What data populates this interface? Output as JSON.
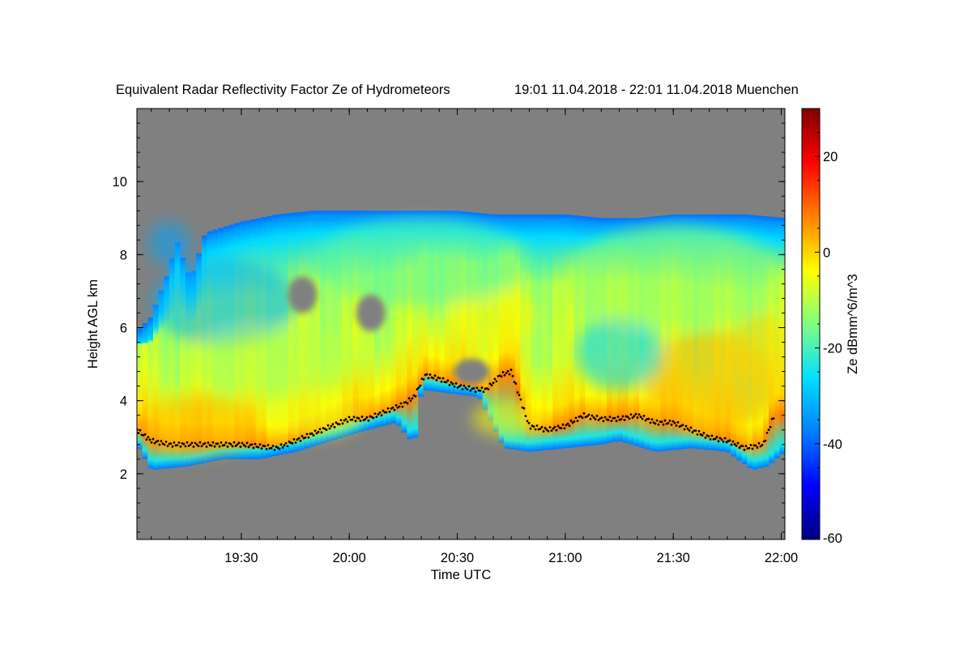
{
  "chart_data": {
    "type": "heatmap",
    "title": "Equivalent Radar Reflectivity Factor Ze of Hydrometeors",
    "subtitle": "19:01 11.04.2018 - 22:01 11.04.2018 Muenchen",
    "xlabel": "Time UTC",
    "ylabel": "Height AGL km",
    "colorbar_label": "Ze dBmm^6/m^3",
    "x_range_minutes_utc": [
      1141,
      1321
    ],
    "x_ticks": [
      {
        "label": "19:30",
        "value": 1170
      },
      {
        "label": "20:00",
        "value": 1200
      },
      {
        "label": "20:30",
        "value": 1230
      },
      {
        "label": "21:00",
        "value": 1260
      },
      {
        "label": "21:30",
        "value": 1290
      },
      {
        "label": "22:00",
        "value": 1320
      }
    ],
    "y_range": [
      0.2,
      12
    ],
    "y_ticks": [
      2,
      4,
      6,
      8,
      10
    ],
    "colorbar_range": [
      -60,
      30
    ],
    "colorbar_ticks": [
      20,
      0,
      -20,
      -40,
      -60
    ],
    "background_no_signal": "#808080",
    "colormap_stops": [
      "#00007f",
      "#0000ff",
      "#0080ff",
      "#00e0ff",
      "#7fff7f",
      "#ffff00",
      "#ff8000",
      "#ff0000",
      "#7f0000"
    ],
    "echo_top_km": [
      [
        1141,
        5.9
      ],
      [
        1145,
        6.3
      ],
      [
        1150,
        7.6
      ],
      [
        1152,
        8.4
      ],
      [
        1156,
        7.3
      ],
      [
        1160,
        8.6
      ],
      [
        1170,
        8.9
      ],
      [
        1180,
        9.1
      ],
      [
        1190,
        9.2
      ],
      [
        1200,
        9.2
      ],
      [
        1210,
        9.2
      ],
      [
        1220,
        9.2
      ],
      [
        1230,
        9.2
      ],
      [
        1240,
        9.1
      ],
      [
        1250,
        9.1
      ],
      [
        1260,
        9.1
      ],
      [
        1270,
        9.0
      ],
      [
        1280,
        9.0
      ],
      [
        1290,
        9.1
      ],
      [
        1300,
        9.1
      ],
      [
        1310,
        9.1
      ],
      [
        1321,
        9.0
      ]
    ],
    "echo_base_km": [
      [
        1141,
        2.8
      ],
      [
        1145,
        2.1
      ],
      [
        1155,
        2.2
      ],
      [
        1165,
        2.4
      ],
      [
        1175,
        2.4
      ],
      [
        1185,
        2.6
      ],
      [
        1195,
        2.9
      ],
      [
        1205,
        3.2
      ],
      [
        1213,
        3.4
      ],
      [
        1218,
        2.8
      ],
      [
        1220,
        4.3
      ],
      [
        1236,
        4.1
      ],
      [
        1240,
        3.3
      ],
      [
        1243,
        2.7
      ],
      [
        1250,
        2.6
      ],
      [
        1260,
        2.7
      ],
      [
        1270,
        2.8
      ],
      [
        1275,
        2.9
      ],
      [
        1285,
        2.6
      ],
      [
        1295,
        2.7
      ],
      [
        1305,
        2.6
      ],
      [
        1312,
        2.1
      ],
      [
        1316,
        2.2
      ],
      [
        1321,
        2.6
      ]
    ],
    "melting_layer_km": [
      [
        1141,
        3.2
      ],
      [
        1145,
        2.9
      ],
      [
        1150,
        2.8
      ],
      [
        1160,
        2.8
      ],
      [
        1170,
        2.8
      ],
      [
        1180,
        2.7
      ],
      [
        1190,
        3.1
      ],
      [
        1195,
        3.3
      ],
      [
        1200,
        3.5
      ],
      [
        1205,
        3.5
      ],
      [
        1210,
        3.7
      ],
      [
        1215,
        3.9
      ],
      [
        1218,
        4.1
      ],
      [
        1221,
        4.7
      ],
      [
        1225,
        4.6
      ],
      [
        1230,
        4.4
      ],
      [
        1235,
        4.3
      ],
      [
        1238,
        4.3
      ],
      [
        1242,
        4.7
      ],
      [
        1245,
        4.8
      ],
      [
        1250,
        3.3
      ],
      [
        1255,
        3.2
      ],
      [
        1260,
        3.3
      ],
      [
        1265,
        3.6
      ],
      [
        1270,
        3.5
      ],
      [
        1275,
        3.5
      ],
      [
        1280,
        3.6
      ],
      [
        1285,
        3.4
      ],
      [
        1290,
        3.4
      ],
      [
        1295,
        3.2
      ],
      [
        1300,
        3.0
      ],
      [
        1305,
        2.9
      ],
      [
        1310,
        2.7
      ],
      [
        1315,
        2.8
      ],
      [
        1318,
        3.6
      ]
    ],
    "echo_holes": [
      {
        "t": 1187,
        "h": 6.9,
        "dt": 4,
        "dh": 0.5
      },
      {
        "t": 1206,
        "h": 6.4,
        "dt": 4,
        "dh": 0.5
      },
      {
        "t": 1234,
        "h": 4.8,
        "dt": 5,
        "dh": 0.35
      }
    ],
    "reflectivity_regions": [
      {
        "t": 1158,
        "h": 3.3,
        "dt": 17,
        "dh": 0.8,
        "ze": 3
      },
      {
        "t": 1190,
        "h": 3.6,
        "dt": 14,
        "dh": 0.6,
        "ze": -5
      },
      {
        "t": 1240,
        "h": 6.3,
        "dt": 12,
        "dh": 0.8,
        "ze": -3
      },
      {
        "t": 1244,
        "h": 3.5,
        "dt": 10,
        "dh": 0.5,
        "ze": -4
      },
      {
        "t": 1300,
        "h": 4.5,
        "dt": 18,
        "dh": 1.4,
        "ze": 3
      },
      {
        "t": 1314,
        "h": 5.4,
        "dt": 8,
        "dh": 1.0,
        "ze": 0
      },
      {
        "t": 1165,
        "h": 6.7,
        "dt": 20,
        "dh": 1.2,
        "ze": -32
      },
      {
        "t": 1150,
        "h": 8.3,
        "dt": 6,
        "dh": 0.6,
        "ze": -33
      },
      {
        "t": 1180,
        "h": 5.1,
        "dt": 25,
        "dh": 0.9,
        "ze": -10
      },
      {
        "t": 1275,
        "h": 5.3,
        "dt": 12,
        "dh": 1.0,
        "ze": -28
      },
      {
        "t": 1290,
        "h": 7.4,
        "dt": 30,
        "dh": 1.4,
        "ze": -12
      },
      {
        "t": 1220,
        "h": 7.8,
        "dt": 30,
        "dh": 1.2,
        "ze": -18
      }
    ]
  }
}
